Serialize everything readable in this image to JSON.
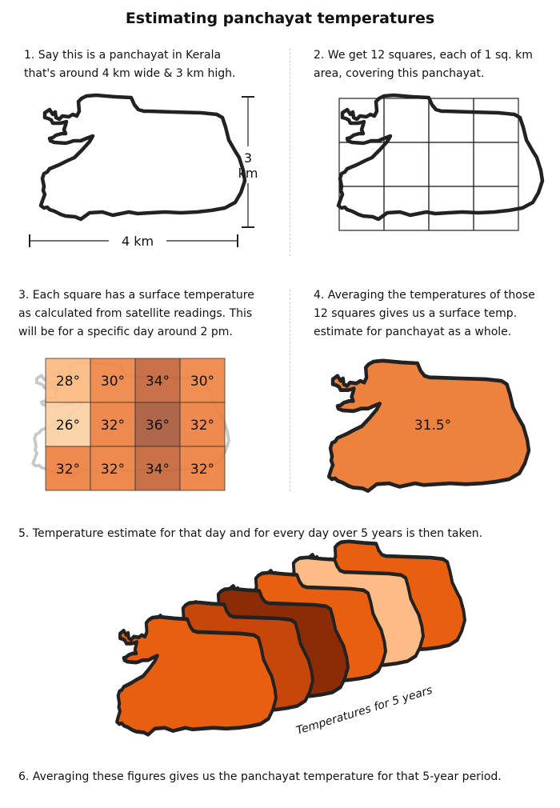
{
  "title": "Estimating panchayat temperatures",
  "steps": {
    "s1": [
      "1. Say this is a panchayat in Kerala",
      "that's around 4 km wide & 3 km high."
    ],
    "s2": [
      "2. We get 12 squares, each of 1 sq. km",
      "area, covering this panchayat."
    ],
    "s3": [
      "3. Each square has a surface temperature",
      "as calculated from satellite readings. This",
      "will be for a specific day around 2 pm."
    ],
    "s4": [
      "4. Averaging the temperatures of those",
      "12 squares gives us a surface temp.",
      "estimate for panchayat as a whole."
    ],
    "s5": "5. Temperature estimate for that day and for every day over 5 years is then taken.",
    "s6": "6. Averaging these figures gives us the panchayat temperature for that 5-year period."
  },
  "dimensions": {
    "width_label": "4 km",
    "height_num": "3",
    "height_unit": "km"
  },
  "grid_temps": [
    [
      "28°",
      "30°",
      "34°",
      "30°"
    ],
    [
      "26°",
      "32°",
      "36°",
      "32°"
    ],
    [
      "32°",
      "32°",
      "34°",
      "32°"
    ]
  ],
  "colors": {
    "26": "#fcd0a3",
    "28": "#fdba7f",
    "30": "#ee8645",
    "32": "#ed8040",
    "34": "#c4653a",
    "36": "#a85a3d",
    "avg": "#ed823f",
    "outline": "#222222",
    "stack": [
      "#e8600f",
      "#c7470a",
      "#8b2c06",
      "#e8600f",
      "#fdbb85",
      "#e8600f"
    ]
  },
  "average_temp": "31.5°",
  "stack_label": "Temperatures for 5 years"
}
